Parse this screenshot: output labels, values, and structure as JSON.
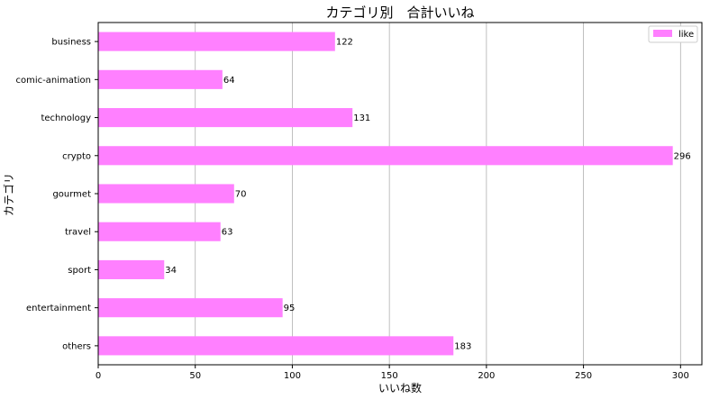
{
  "chart_data": {
    "type": "bar",
    "orientation": "horizontal",
    "title": "カテゴリ別　合計いいね",
    "xlabel": "いいね数",
    "ylabel": "カテゴリ",
    "categories": [
      "business",
      "comic-animation",
      "technology",
      "crypto",
      "gourmet",
      "travel",
      "sport",
      "entertainment",
      "others"
    ],
    "series": [
      {
        "name": "like",
        "values": [
          122,
          64,
          131,
          296,
          70,
          63,
          34,
          95,
          183
        ],
        "color": "#ff80ff"
      }
    ],
    "xlim": [
      0,
      311
    ],
    "xticks": [
      0,
      50,
      100,
      150,
      200,
      250,
      300
    ],
    "grid": "vertical",
    "legend_position": "top-right",
    "show_data_labels": true
  }
}
